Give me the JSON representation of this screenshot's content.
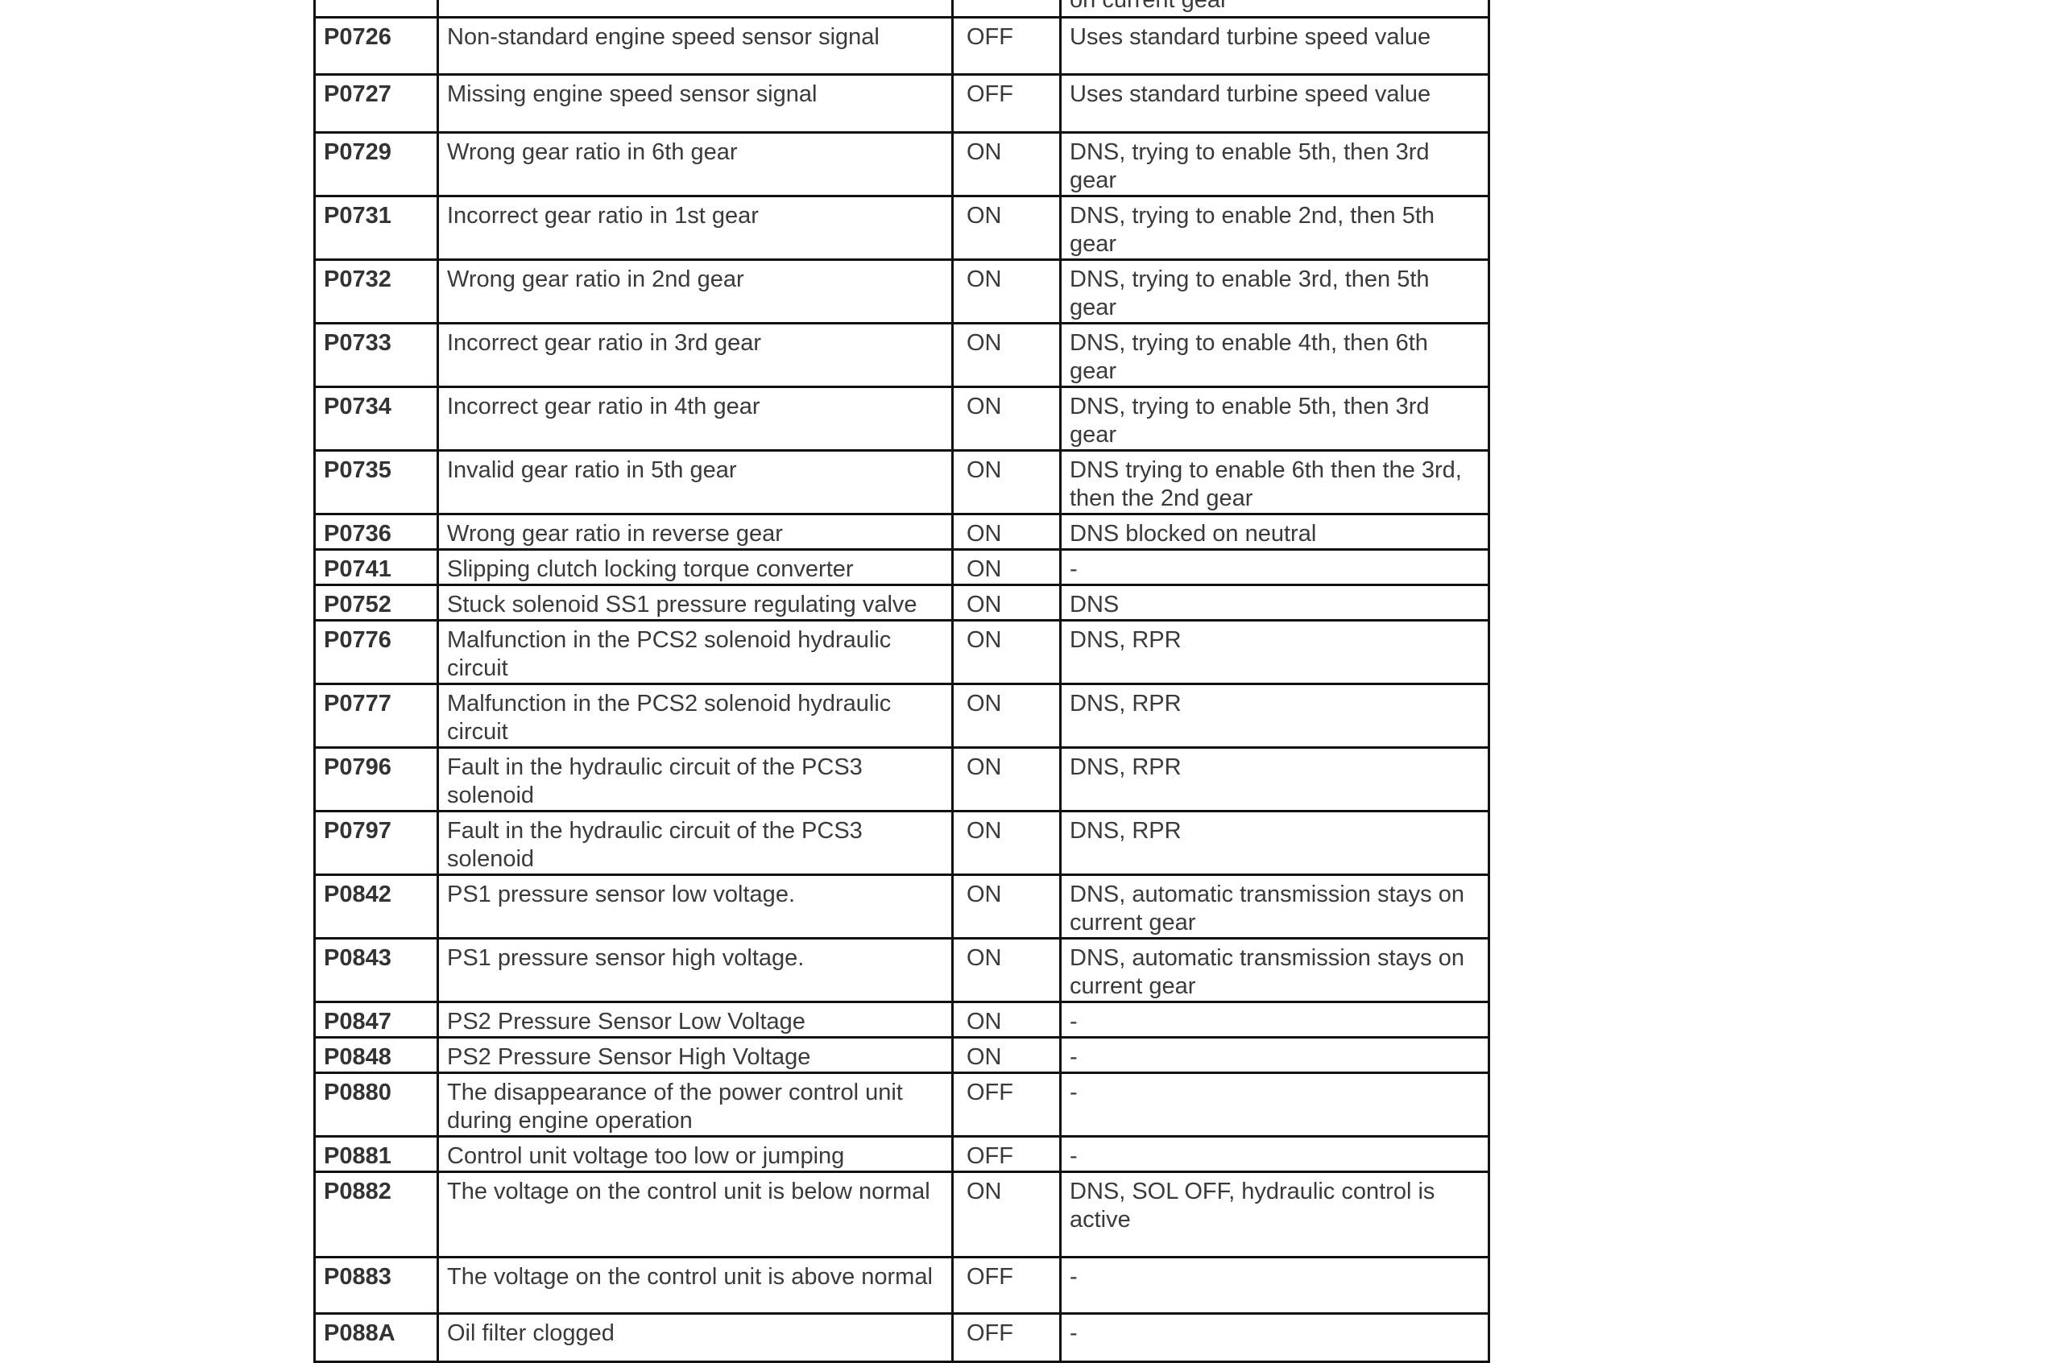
{
  "table": {
    "partial_top": {
      "code": "",
      "description": "",
      "indicator": "",
      "action": "on current gear"
    },
    "rows": [
      {
        "code": "P0726",
        "description": "Non-standard engine speed sensor signal",
        "indicator": "OFF",
        "action": "Uses standard turbine speed value"
      },
      {
        "code": "P0727",
        "description": "Missing engine speed sensor signal",
        "indicator": "OFF",
        "action": "Uses standard turbine speed value"
      },
      {
        "code": "P0729",
        "description": "Wrong gear ratio in 6th gear",
        "indicator": "ON",
        "action": "DNS, trying to enable 5th, then 3rd gear"
      },
      {
        "code": "P0731",
        "description": "Incorrect gear ratio in 1st gear",
        "indicator": "ON",
        "action": "DNS, trying to enable 2nd, then 5th gear"
      },
      {
        "code": "P0732",
        "description": "Wrong gear ratio in 2nd gear",
        "indicator": "ON",
        "action": "DNS, trying to enable 3rd, then 5th gear"
      },
      {
        "code": "P0733",
        "description": "Incorrect gear ratio in 3rd gear",
        "indicator": "ON",
        "action": "DNS, trying to enable 4th, then 6th gear"
      },
      {
        "code": "P0734",
        "description": "Incorrect gear ratio in 4th gear",
        "indicator": "ON",
        "action": "DNS, trying to enable 5th, then 3rd gear"
      },
      {
        "code": "P0735",
        "description": "Invalid gear ratio in 5th gear",
        "indicator": "ON",
        "action": "DNS trying to enable 6th then the 3rd, then the 2nd gear"
      },
      {
        "code": "P0736",
        "description": "Wrong gear ratio in reverse gear",
        "indicator": "ON",
        "action": "DNS blocked on neutral"
      },
      {
        "code": "P0741",
        "description": "Slipping clutch locking torque converter",
        "indicator": "ON",
        "action": "-"
      },
      {
        "code": "P0752",
        "description": "Stuck solenoid SS1 pressure regulating valve",
        "indicator": "ON",
        "action": "DNS"
      },
      {
        "code": "P0776",
        "description": "Malfunction in the PCS2 solenoid hydraulic circuit",
        "indicator": "ON",
        "action": "DNS, RPR"
      },
      {
        "code": "P0777",
        "description": "Malfunction in the PCS2 solenoid hydraulic circuit",
        "indicator": "ON",
        "action": "DNS, RPR"
      },
      {
        "code": "P0796",
        "description": "Fault in the hydraulic circuit of the PCS3 solenoid",
        "indicator": "ON",
        "action": "DNS, RPR"
      },
      {
        "code": "P0797",
        "description": "Fault in the hydraulic circuit of the PCS3 solenoid",
        "indicator": "ON",
        "action": "DNS, RPR"
      },
      {
        "code": "P0842",
        "description": "PS1 pressure sensor low voltage.",
        "indicator": "ON",
        "action": "DNS, automatic transmission stays on current gear"
      },
      {
        "code": "P0843",
        "description": "PS1 pressure sensor high voltage.",
        "indicator": "ON",
        "action": "DNS, automatic transmission stays on current gear"
      },
      {
        "code": "P0847",
        "description": "PS2 Pressure Sensor Low Voltage",
        "indicator": "ON",
        "action": "-"
      },
      {
        "code": "P0848",
        "description": "PS2 Pressure Sensor High Voltage",
        "indicator": "ON",
        "action": "-"
      },
      {
        "code": "P0880",
        "description": "The disappearance of the power control unit during engine operation",
        "indicator": "OFF",
        "action": "-"
      },
      {
        "code": "P0881",
        "description": "Control unit voltage too low or jumping",
        "indicator": "OFF",
        "action": "-"
      },
      {
        "code": "P0882",
        "description": "The voltage on the control unit is below normal",
        "indicator": "ON",
        "action": "DNS, SOL OFF, hydraulic control is active"
      },
      {
        "code": "P0883",
        "description": "The voltage on the control unit is above normal",
        "indicator": "OFF",
        "action": "-"
      },
      {
        "code": "P088A",
        "description": "Oil filter clogged",
        "indicator": "OFF",
        "action": "-"
      }
    ]
  }
}
